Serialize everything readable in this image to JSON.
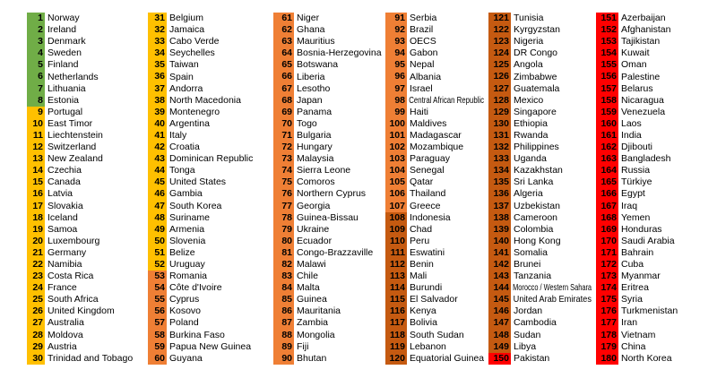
{
  "tiers": [
    {
      "from": 1,
      "to": 8,
      "color": "#70ad47"
    },
    {
      "from": 9,
      "to": 52,
      "color": "#ffc000"
    },
    {
      "from": 53,
      "to": 107,
      "color": "#ef7f35"
    },
    {
      "from": 108,
      "to": 149,
      "color": "#c55a11"
    },
    {
      "from": 150,
      "to": 180,
      "color": "#ff0000"
    }
  ],
  "countries": [
    "Norway",
    "Ireland",
    "Denmark",
    "Sweden",
    "Finland",
    "Netherlands",
    "Lithuania",
    "Estonia",
    "Portugal",
    "East Timor",
    "Liechtenstein",
    "Switzerland",
    "New Zealand",
    "Czechia",
    "Canada",
    "Latvia",
    "Slovakia",
    "Iceland",
    "Samoa",
    "Luxembourg",
    "Germany",
    "Namibia",
    "Costa Rica",
    "France",
    "South Africa",
    "United Kingdom",
    "Australia",
    "Moldova",
    "Austria",
    "Trinidad and Tobago",
    "Belgium",
    "Jamaica",
    "Cabo Verde",
    "Seychelles",
    "Taiwan",
    "Spain",
    "Andorra",
    "North Macedonia",
    "Montenegro",
    "Argentina",
    "Italy",
    "Croatia",
    "Dominican Republic",
    "Tonga",
    "United States",
    "Gambia",
    "South Korea",
    "Suriname",
    "Armenia",
    "Slovenia",
    "Belize",
    "Uruguay",
    "Romania",
    "Côte d'Ivoire",
    "Cyprus",
    "Kosovo",
    "Poland",
    "Burkina Faso",
    "Papua New Guinea",
    "Guyana",
    "Niger",
    "Ghana",
    "Mauritius",
    "Bosnia-Herzegovina",
    "Botswana",
    "Liberia",
    "Lesotho",
    "Japan",
    "Panama",
    "Togo",
    "Bulgaria",
    "Hungary",
    "Malaysia",
    "Sierra Leone",
    "Comoros",
    "Northern Cyprus",
    "Georgia",
    "Guinea-Bissau",
    "Ukraine",
    "Ecuador",
    "Congo-Brazzaville",
    "Malawi",
    "Chile",
    "Malta",
    "Guinea",
    "Mauritania",
    "Zambia",
    "Mongolia",
    "Fiji",
    "Bhutan",
    "Serbia",
    "Brazil",
    "OECS",
    "Gabon",
    "Nepal",
    "Albania",
    "Israel",
    "Central African Republic",
    "Haiti",
    "Maldives",
    "Madagascar",
    "Mozambique",
    "Paraguay",
    "Senegal",
    "Qatar",
    "Thailand",
    "Greece",
    "Indonesia",
    "Chad",
    "Peru",
    "Eswatini",
    "Benin",
    "Mali",
    "Burundi",
    "El Salvador",
    "Kenya",
    "Bolivia",
    "South Sudan",
    "Lebanon",
    "Equatorial Guinea",
    "Tunisia",
    "Kyrgyzstan",
    "Nigeria",
    "DR Congo",
    "Angola",
    "Zimbabwe",
    "Guatemala",
    "Mexico",
    "Singapore",
    "Ethiopia",
    "Rwanda",
    "Philippines",
    "Uganda",
    "Kazakhstan",
    "Sri Lanka",
    "Algeria",
    "Uzbekistan",
    "Cameroon",
    "Colombia",
    "Hong Kong",
    "Somalia",
    "Brunei",
    "Tanzania",
    "Morocco / Western Sahara",
    "United Arab Emirates",
    "Jordan",
    "Cambodia",
    "Sudan",
    "Libya",
    "Pakistan",
    "Azerbaijan",
    "Afghanistan",
    "Tajikistan",
    "Kuwait",
    "Oman",
    "Palestine",
    "Belarus",
    "Nicaragua",
    "Venezuela",
    "Laos",
    "India",
    "Djibouti",
    "Bangladesh",
    "Russia",
    "Türkiye",
    "Egypt",
    "Iraq",
    "Yemen",
    "Honduras",
    "Saudi Arabia",
    "Bahrain",
    "Cuba",
    "Myanmar",
    "Eritrea",
    "Syria",
    "Turkmenistan",
    "Iran",
    "Vietnam",
    "China",
    "North Korea"
  ]
}
